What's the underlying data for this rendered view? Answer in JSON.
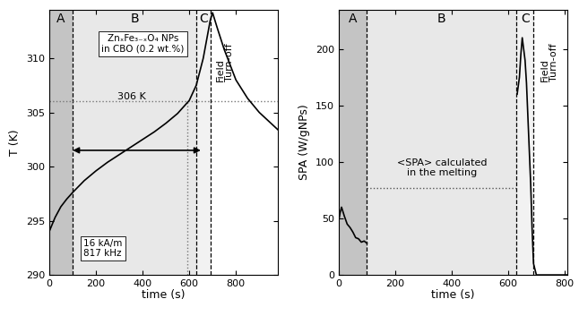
{
  "chart_data": [
    {
      "type": "line",
      "xlabel": "time (s)",
      "ylabel": "T (K)",
      "xlim": [
        0,
        980
      ],
      "ylim": [
        290,
        314.5
      ],
      "xticks": [
        0,
        200,
        400,
        600,
        800
      ],
      "yticks": [
        290,
        295,
        300,
        305,
        310
      ],
      "series": [
        {
          "name": "T",
          "color": "#000000",
          "line_style": "solid",
          "x": [
            0,
            25,
            50,
            75,
            100,
            150,
            200,
            250,
            300,
            350,
            400,
            450,
            500,
            550,
            600,
            630,
            660,
            690,
            700,
            720,
            750,
            800,
            850,
            900,
            950,
            980
          ],
          "values": [
            294,
            295.3,
            296.3,
            297,
            297.6,
            298.7,
            299.6,
            300.4,
            301.1,
            301.8,
            302.5,
            303.2,
            304,
            304.9,
            306.1,
            307.5,
            310,
            313.5,
            314.2,
            312.8,
            310.8,
            308,
            306.3,
            305,
            304,
            303.4
          ]
        }
      ],
      "regions": [
        {
          "label": "A",
          "start": 0,
          "end": 100,
          "color": "#c4c4c4"
        },
        {
          "label": "B",
          "start": 100,
          "end": 630,
          "color": "#e8e8e8"
        },
        {
          "label": "C",
          "start": 630,
          "end": 690,
          "color": "#f2f2f2"
        }
      ],
      "reference_lines": [
        {
          "axis": "y",
          "value": 306,
          "label": "306 K"
        },
        {
          "axis": "x",
          "value": 590
        }
      ],
      "arrow": {
        "from": 90,
        "to": 660,
        "y": 301.5
      },
      "annotations": [
        "ZnₓFe₃₋ₓO₄ NPs\nin CBO (0.2 wt.%)",
        "16 kA/m\n817 kHz",
        "Field\nTurn-off"
      ]
    },
    {
      "type": "line",
      "xlabel": "time (s)",
      "ylabel": "SPA (W/gNPs)",
      "xlim": [
        0,
        810
      ],
      "ylim": [
        0,
        235
      ],
      "xticks": [
        0,
        200,
        400,
        600,
        800
      ],
      "yticks": [
        0,
        50,
        100,
        150,
        200
      ],
      "series": [
        {
          "name": "SPA",
          "color": "#000000",
          "line_style": "solid",
          "x": [
            0,
            5,
            10,
            20,
            30,
            40,
            50,
            60,
            70,
            80,
            90,
            100,
            360,
            632,
            640,
            645,
            650,
            655,
            660,
            665,
            670,
            675,
            680,
            685,
            690,
            700,
            750,
            810
          ],
          "values": [
            48,
            55,
            60,
            52,
            45,
            42,
            38,
            33,
            32,
            29,
            30,
            28,
            null,
            160,
            175,
            195,
            210,
            200,
            190,
            170,
            140,
            110,
            80,
            40,
            10,
            0,
            0,
            0
          ]
        }
      ],
      "regions": [
        {
          "label": "A",
          "start": 0,
          "end": 100,
          "color": "#c4c4c4"
        },
        {
          "label": "B",
          "start": 100,
          "end": 630,
          "color": "#e8e8e8"
        },
        {
          "label": "C",
          "start": 630,
          "end": 690,
          "color": "#f2f2f2"
        }
      ],
      "reference_lines": [
        {
          "axis": "y",
          "value": 77,
          "from": 100,
          "to": 630,
          "label": "<SPA> calculated\nin the melting"
        }
      ],
      "annotations": [
        "Field\nTurn-off"
      ]
    }
  ]
}
